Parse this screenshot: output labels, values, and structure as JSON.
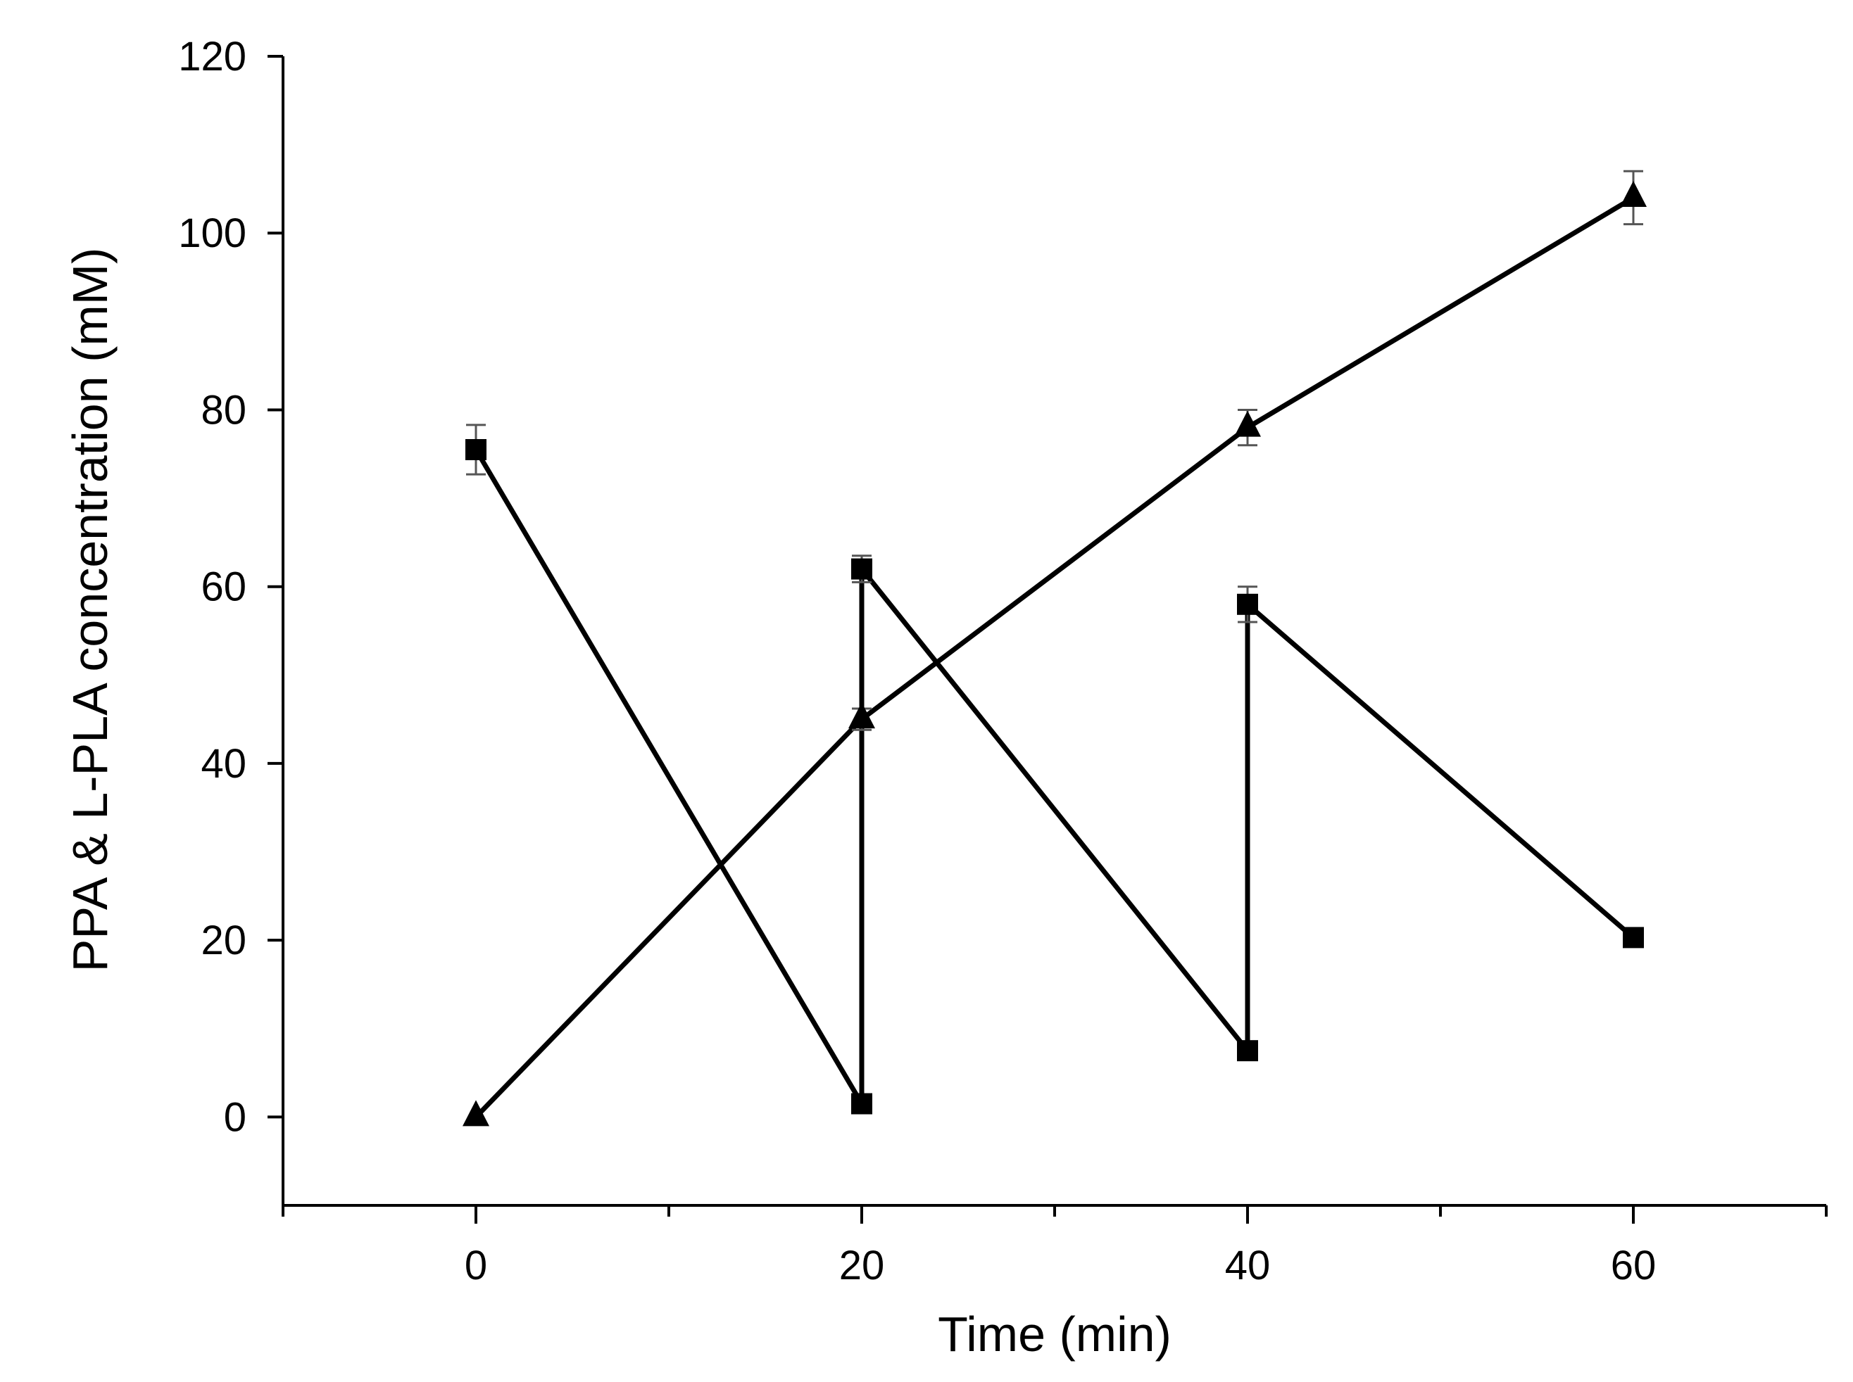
{
  "chart_data": {
    "type": "line",
    "title": "",
    "xlabel": "Time (min)",
    "ylabel": "PPA & L-PLA concentration (mM)",
    "xlim": [
      -10,
      70
    ],
    "ylim": [
      -10,
      120
    ],
    "x_ticks": [
      0,
      20,
      40,
      60
    ],
    "x_minor_ticks": [
      -10,
      10,
      30,
      50,
      70
    ],
    "y_ticks": [
      0,
      20,
      40,
      60,
      80,
      100,
      120
    ],
    "grid": false,
    "legend": "none",
    "colors": {
      "line": "#000000",
      "axis": "#000000",
      "error_bar": "#555555"
    },
    "series": [
      {
        "name": "PPA",
        "marker": "square",
        "points": [
          {
            "x": 0,
            "y": 75.5,
            "err": 2.8
          },
          {
            "x": 20,
            "y": 1.5,
            "err": 0.5
          },
          {
            "x": 20,
            "y": 62,
            "err": 1.5
          },
          {
            "x": 40,
            "y": 7.5,
            "err": 0.5
          },
          {
            "x": 40,
            "y": 58,
            "err": 2.0
          },
          {
            "x": 60,
            "y": 20.3,
            "err": 0.5
          }
        ]
      },
      {
        "name": "L-PLA",
        "marker": "triangle",
        "points": [
          {
            "x": 0,
            "y": 0,
            "err": 0
          },
          {
            "x": 20,
            "y": 45,
            "err": 1.2
          },
          {
            "x": 40,
            "y": 78,
            "err": 2.0
          },
          {
            "x": 60,
            "y": 104,
            "err": 3.0
          }
        ]
      }
    ]
  }
}
